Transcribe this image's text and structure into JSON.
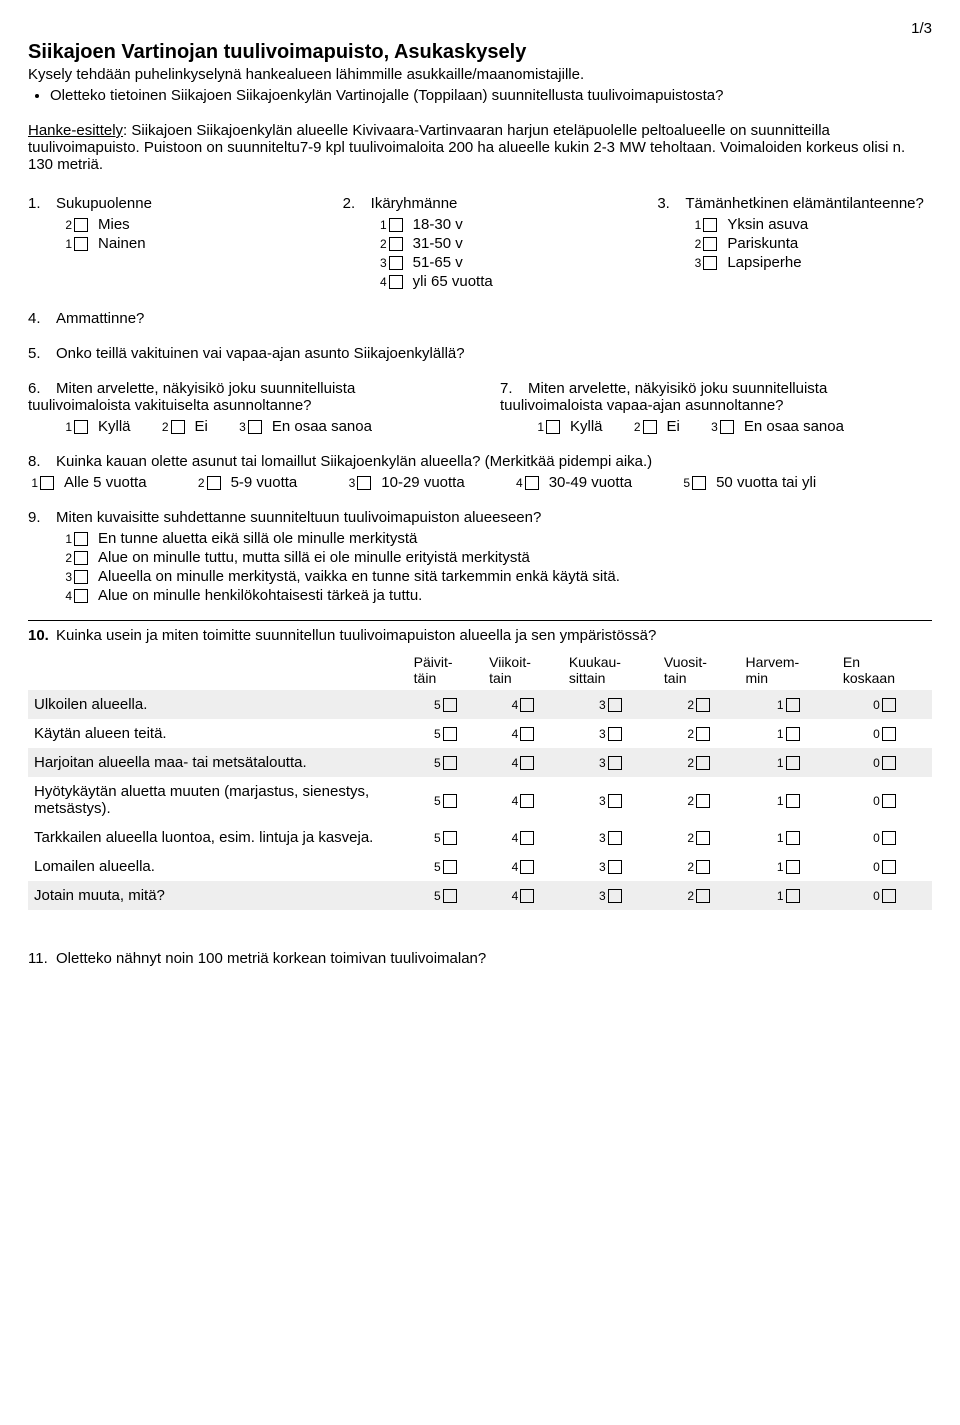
{
  "page_number": "1/3",
  "title": "Siikajoen Vartinojan tuulivoimapuisto, Asukaskysely",
  "intro": "Kysely tehdään puhelinkyselynä hankealueen lähimmille asukkaille/maanomistajille.",
  "bullet": "Oletteko tietoinen Siikajoen Siikajoenkylän Vartinojalle (Toppilaan) suunnitellusta tuulivoimapuistosta?",
  "hanke_lead": "Hanke-esittely",
  "hanke_body": ": Siikajoen Siikajoenkylän alueelle Kivivaara-Vartinvaaran harjun eteläpuolelle peltoalueelle on suunnitteilla tuulivoimapuisto. Puistoon on suunniteltu7-9 kpl tuulivoimaloita 200 ha alueelle kukin 2-3 MW teholtaan. Voimaloiden korkeus olisi n. 130 metriä.",
  "q1": {
    "num": "1.",
    "label": "Sukupuolenne",
    "opts": [
      {
        "n": "2",
        "t": "Mies"
      },
      {
        "n": "1",
        "t": "Nainen"
      }
    ]
  },
  "q2": {
    "num": "2.",
    "label": "Ikäryhmänne",
    "opts": [
      {
        "n": "1",
        "t": "18-30 v"
      },
      {
        "n": "2",
        "t": "31-50 v"
      },
      {
        "n": "3",
        "t": "51-65 v"
      },
      {
        "n": "4",
        "t": "yli 65 vuotta"
      }
    ]
  },
  "q3": {
    "num": "3.",
    "label": "Tämänhetkinen elämäntilanteenne?",
    "opts": [
      {
        "n": "1",
        "t": "Yksin asuva"
      },
      {
        "n": "2",
        "t": "Pariskunta"
      },
      {
        "n": "3",
        "t": "Lapsiperhe"
      }
    ]
  },
  "q4": {
    "num": "4.",
    "label": "Ammattinne?"
  },
  "q5": {
    "num": "5.",
    "label": "Onko teillä vakituinen vai vapaa-ajan asunto Siikajoenkylällä?"
  },
  "q6": {
    "num": "6.",
    "label": "Miten arvelette, näkyisikö joku suunnitelluista tuulivoimaloista vakituiselta asunnoltanne?",
    "opts": [
      {
        "n": "1",
        "t": "Kyllä"
      },
      {
        "n": "2",
        "t": "Ei"
      },
      {
        "n": "3",
        "t": "En osaa sanoa"
      }
    ]
  },
  "q7": {
    "num": "7.",
    "label": "Miten arvelette, näkyisikö joku suunnitelluista tuulivoimaloista vapaa-ajan asunnoltanne?",
    "opts": [
      {
        "n": "1",
        "t": "Kyllä"
      },
      {
        "n": "2",
        "t": "Ei"
      },
      {
        "n": "3",
        "t": "En osaa sanoa"
      }
    ]
  },
  "q8": {
    "num": "8.",
    "label": "Kuinka kauan olette asunut tai lomaillut Siikajoenkylän alueella? (Merkitkää pidempi aika.)",
    "opts": [
      {
        "n": "1",
        "t": "Alle 5 vuotta"
      },
      {
        "n": "2",
        "t": "5-9 vuotta"
      },
      {
        "n": "3",
        "t": "10-29 vuotta"
      },
      {
        "n": "4",
        "t": "30-49 vuotta"
      },
      {
        "n": "5",
        "t": "50 vuotta tai yli"
      }
    ]
  },
  "q9": {
    "num": "9.",
    "label": "Miten kuvaisitte suhdettanne suunniteltuun tuulivoimapuiston alueeseen?",
    "opts": [
      {
        "n": "1",
        "t": "En tunne aluetta eikä sillä ole minulle merkitystä"
      },
      {
        "n": "2",
        "t": "Alue on minulle tuttu, mutta sillä ei ole minulle erityistä merkitystä"
      },
      {
        "n": "3",
        "t": "Alueella on minulle merkitystä, vaikka en tunne sitä tarkemmin enkä käytä sitä."
      },
      {
        "n": "4",
        "t": "Alue on minulle henkilökohtaisesti tärkeä ja tuttu."
      }
    ]
  },
  "q10": {
    "num": "10.",
    "label": "Kuinka usein ja miten toimitte suunnitellun tuulivoimapuiston alueella ja sen ympäristössä?",
    "headers": [
      "Päivit-\ntäin",
      "Viikoit-\ntain",
      "Kuukau-\nsittain",
      "Vuosit-\ntain",
      "Harvem-\nmin",
      "En\nkoskaan"
    ],
    "rows": [
      {
        "t": "Ulkoilen alueella.",
        "shade": true
      },
      {
        "t": "Käytän alueen teitä.",
        "shade": false
      },
      {
        "t": "Harjoitan alueella maa- tai metsätaloutta.",
        "shade": true
      },
      {
        "t": "Hyötykäytän aluetta muuten (marjastus, sienestys, metsästys).",
        "shade": false
      },
      {
        "t": "Tarkkailen alueella luontoa, esim. lintuja ja kasveja.",
        "shade": false
      },
      {
        "t": "Lomailen alueella.",
        "shade": false
      },
      {
        "t": "Jotain muuta, mitä?",
        "shade": true
      }
    ],
    "scale": [
      "5",
      "4",
      "3",
      "2",
      "1",
      "0"
    ]
  },
  "q11": {
    "num": "11.",
    "label": "Oletteko nähnyt noin 100 metriä korkean toimivan tuulivoimalan?"
  }
}
